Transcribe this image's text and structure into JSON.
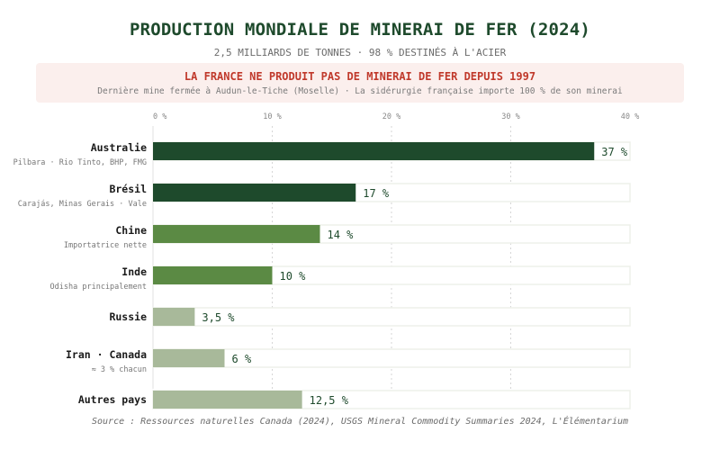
{
  "header": {
    "title": "PRODUCTION MONDIALE DE MINERAI DE FER (2024)",
    "subtitle": "2,5 MILLIARDS DE TONNES · 98 % DESTINÉS À L'ACIER"
  },
  "alert": {
    "title": "LA FRANCE NE PRODUIT PAS DE MINERAI DE FER DEPUIS 1997",
    "subtitle": "Dernière mine fermée à Audun-le-Tiche (Moselle) · La sidérurgie française importe 100 % de son minerai"
  },
  "chart_data": {
    "type": "bar",
    "orientation": "horizontal",
    "categories": [
      "Australie",
      "Brésil",
      "Chine",
      "Inde",
      "Russie",
      "Iran · Canada",
      "Autres pays"
    ],
    "sublabels": [
      "Pilbara · Rio Tinto, BHP, FMG",
      "Carajás, Minas Gerais · Vale",
      "Importatrice nette",
      "Odisha principalement",
      "",
      "≈ 3 % chacun",
      ""
    ],
    "values": [
      37,
      17,
      14,
      10,
      3.5,
      6,
      12.5
    ],
    "value_labels": [
      "37 %",
      "17 %",
      "14 %",
      "10 %",
      "3,5 %",
      "6 %",
      "12,5 %"
    ],
    "colors": [
      "#1e4a2c",
      "#1e4a2c",
      "#5b8a44",
      "#5b8a44",
      "#a8b99a",
      "#a8b99a",
      "#a8b99a"
    ],
    "xlim": [
      0,
      40
    ],
    "xticks": [
      0,
      10,
      20,
      30,
      40
    ],
    "xtick_labels": [
      "0 %",
      "10 %",
      "20 %",
      "30 %",
      "40 %"
    ],
    "grid": true
  },
  "footer": {
    "source": "Source : Ressources naturelles Canada (2024), USGS Mineral Commodity Summaries 2024, L'Élémentarium"
  }
}
